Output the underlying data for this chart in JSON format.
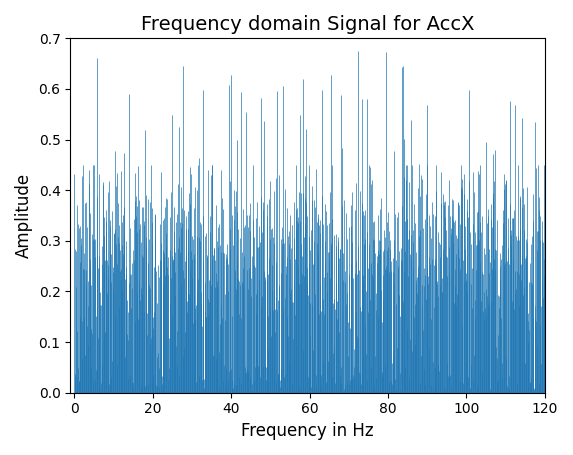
{
  "title": "Frequency domain Signal for AccX",
  "xlabel": "Frequency in Hz",
  "ylabel": "Amplitude",
  "xlim": [
    -1,
    120
  ],
  "ylim": [
    0.0,
    0.7
  ],
  "yticks": [
    0.0,
    0.1,
    0.2,
    0.3,
    0.4,
    0.5,
    0.6,
    0.7
  ],
  "xticks": [
    0,
    20,
    40,
    60,
    80,
    100,
    120
  ],
  "line_color": "#1f77b4",
  "figsize": [
    5.73,
    4.55
  ],
  "dpi": 100,
  "n_points": 1200,
  "seed": 7,
  "base_mean": 0.28,
  "base_std": 0.09,
  "min_val": 0.01,
  "spike_prob": 0.04,
  "spike_min": 0.42,
  "spike_max": 0.68,
  "title_fontsize": 14,
  "label_fontsize": 12
}
